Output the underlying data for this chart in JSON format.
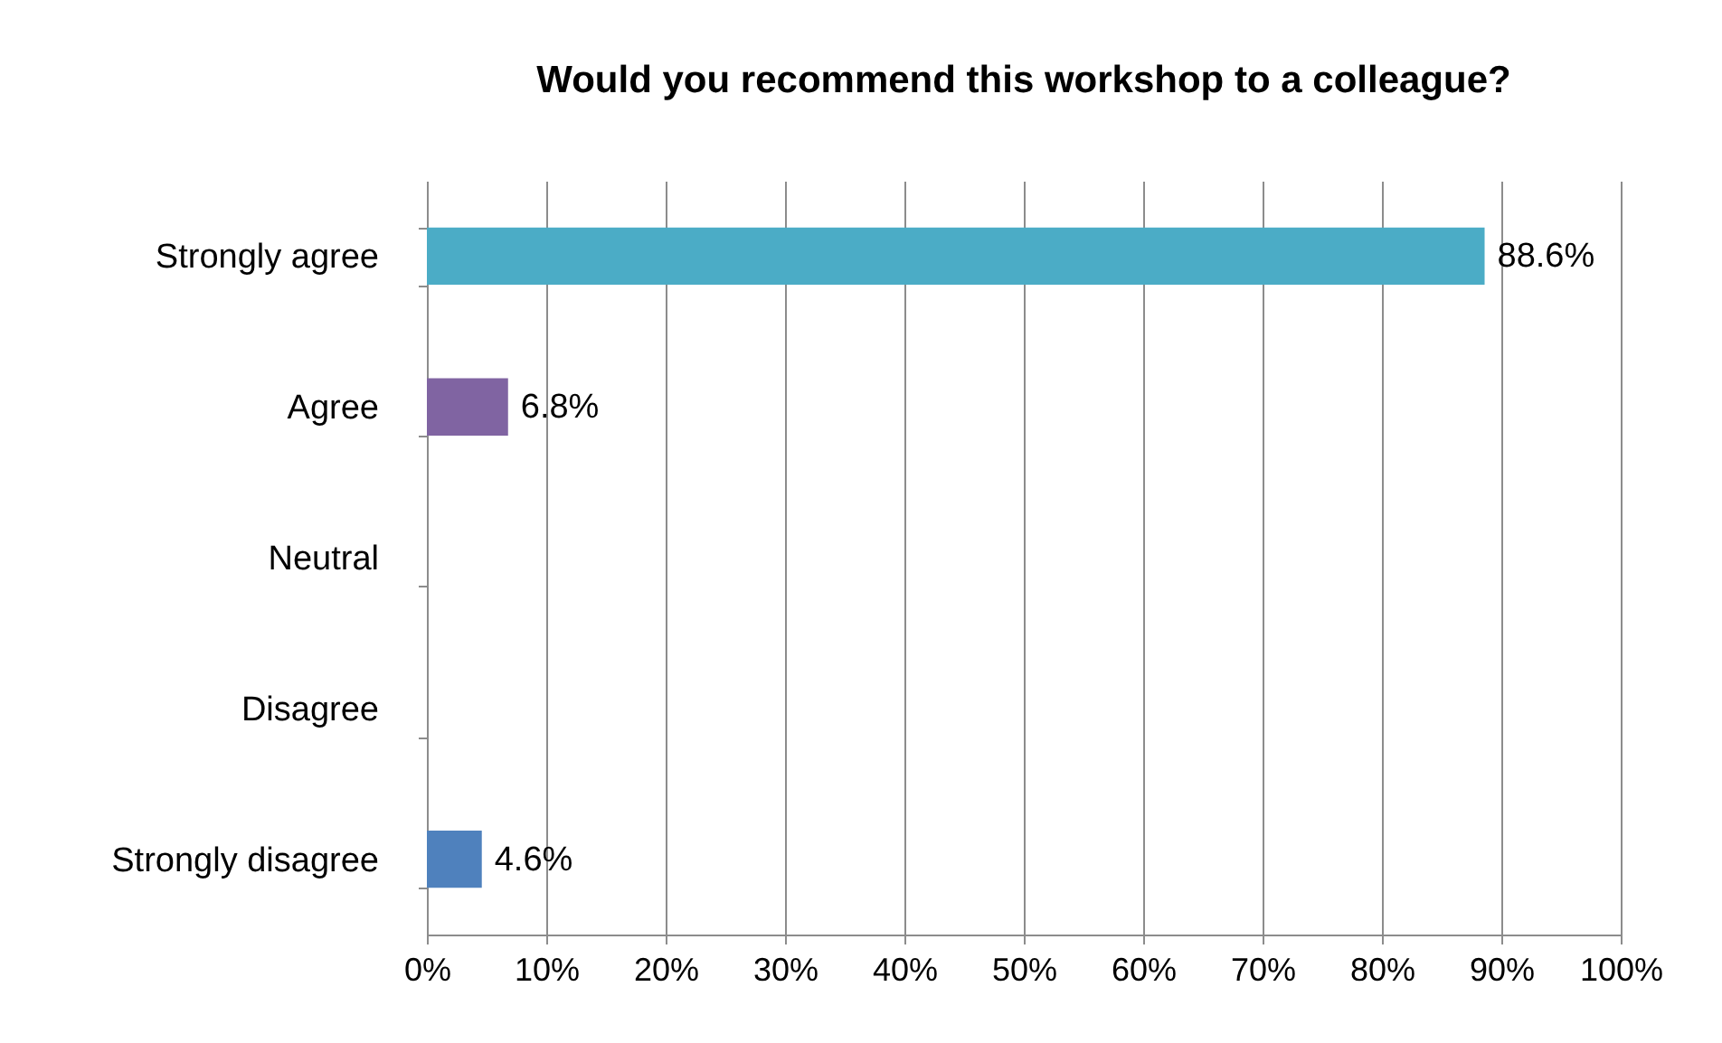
{
  "chart_data": {
    "type": "bar",
    "orientation": "horizontal",
    "title": "Would you recommend this workshop to a colleague?",
    "categories": [
      "Strongly agree",
      "Agree",
      "Neutral",
      "Disagree",
      "Strongly disagree"
    ],
    "values": [
      88.6,
      6.8,
      null,
      null,
      4.6
    ],
    "colors": [
      "#4bacc6",
      "#8064a2",
      null,
      null,
      "#4f81bd"
    ],
    "value_labels": [
      "88.6%",
      "6.8%",
      null,
      null,
      "4.6%"
    ],
    "xlim": [
      0,
      100
    ],
    "xticks": [
      {
        "value": 0,
        "label": "0%"
      },
      {
        "value": 10,
        "label": "10%"
      },
      {
        "value": 20,
        "label": "20%"
      },
      {
        "value": 30,
        "label": "30%"
      },
      {
        "value": 40,
        "label": "40%"
      },
      {
        "value": 50,
        "label": "50%"
      },
      {
        "value": 60,
        "label": "60%"
      },
      {
        "value": 70,
        "label": "70%"
      },
      {
        "value": 80,
        "label": "80%"
      },
      {
        "value": 90,
        "label": "90%"
      },
      {
        "value": 100,
        "label": "100%"
      }
    ],
    "grid": "x"
  }
}
